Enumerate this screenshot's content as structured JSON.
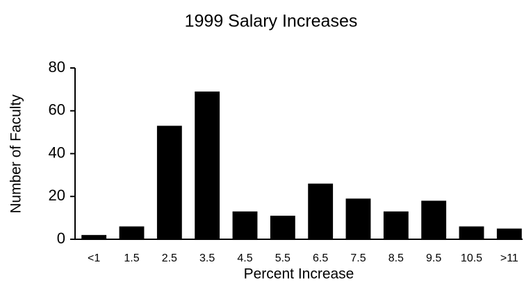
{
  "chart_data": {
    "type": "bar",
    "title": "1999 Salary Increases",
    "xlabel": "Percent Increase",
    "ylabel": "Number of Faculty",
    "categories": [
      "<1",
      "1.5",
      "2.5",
      "3.5",
      "4.5",
      "5.5",
      "6.5",
      "7.5",
      "8.5",
      "9.5",
      "10.5",
      ">11"
    ],
    "values": [
      2,
      6,
      53,
      69,
      13,
      11,
      26,
      19,
      13,
      18,
      6,
      5
    ],
    "color": "#000000",
    "ylim": [
      0,
      80
    ],
    "yticks": [
      0,
      20,
      40,
      60,
      80
    ],
    "grid": false
  }
}
